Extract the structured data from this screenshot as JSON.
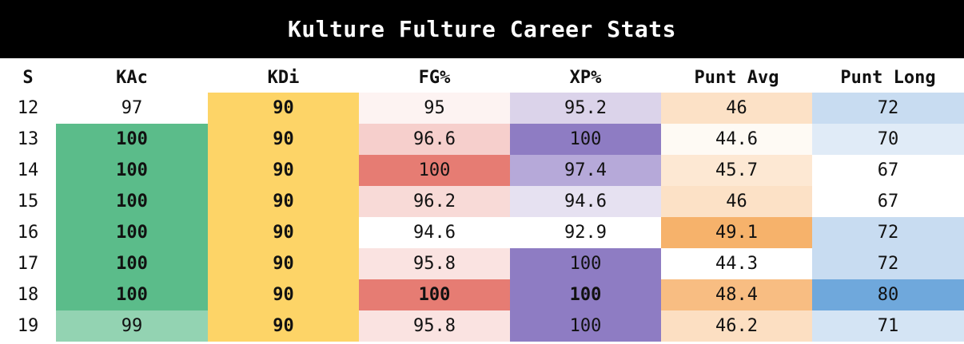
{
  "title": "Kulture Fulture Career Stats",
  "columns": [
    "S",
    "KAc",
    "KDi",
    "FG%",
    "XP%",
    "Punt Avg",
    "Punt Long"
  ],
  "rows": [
    {
      "cells": [
        {
          "v": "12",
          "bg": "#ffffff",
          "b": false
        },
        {
          "v": "97",
          "bg": "#ffffff",
          "b": false
        },
        {
          "v": "90",
          "bg": "#fdd467",
          "b": true
        },
        {
          "v": "95",
          "bg": "#fdf3f2",
          "b": false
        },
        {
          "v": "95.2",
          "bg": "#dbd3ea",
          "b": false
        },
        {
          "v": "46",
          "bg": "#fce1c6",
          "b": false
        },
        {
          "v": "72",
          "bg": "#c8dcf1",
          "b": false
        }
      ]
    },
    {
      "cells": [
        {
          "v": "13",
          "bg": "#ffffff",
          "b": false
        },
        {
          "v": "100",
          "bg": "#5bbc8a",
          "b": true
        },
        {
          "v": "90",
          "bg": "#fdd467",
          "b": true
        },
        {
          "v": "96.6",
          "bg": "#f6cfcc",
          "b": false
        },
        {
          "v": "100",
          "bg": "#8e7cc3",
          "b": false
        },
        {
          "v": "44.6",
          "bg": "#fefaf4",
          "b": false
        },
        {
          "v": "70",
          "bg": "#e0ebf7",
          "b": false
        }
      ]
    },
    {
      "cells": [
        {
          "v": "14",
          "bg": "#ffffff",
          "b": false
        },
        {
          "v": "100",
          "bg": "#5bbc8a",
          "b": true
        },
        {
          "v": "90",
          "bg": "#fdd467",
          "b": true
        },
        {
          "v": "100",
          "bg": "#e67c73",
          "b": false
        },
        {
          "v": "97.4",
          "bg": "#b6a9d9",
          "b": false
        },
        {
          "v": "45.7",
          "bg": "#fde8d3",
          "b": false
        },
        {
          "v": "67",
          "bg": "#ffffff",
          "b": false
        }
      ]
    },
    {
      "cells": [
        {
          "v": "15",
          "bg": "#ffffff",
          "b": false
        },
        {
          "v": "100",
          "bg": "#5bbc8a",
          "b": true
        },
        {
          "v": "90",
          "bg": "#fdd467",
          "b": true
        },
        {
          "v": "96.2",
          "bg": "#f8dad7",
          "b": false
        },
        {
          "v": "94.6",
          "bg": "#e6e1f1",
          "b": false
        },
        {
          "v": "46",
          "bg": "#fce1c6",
          "b": false
        },
        {
          "v": "67",
          "bg": "#ffffff",
          "b": false
        }
      ]
    },
    {
      "cells": [
        {
          "v": "16",
          "bg": "#ffffff",
          "b": false
        },
        {
          "v": "100",
          "bg": "#5bbc8a",
          "b": true
        },
        {
          "v": "90",
          "bg": "#fdd467",
          "b": true
        },
        {
          "v": "94.6",
          "bg": "#ffffff",
          "b": false
        },
        {
          "v": "92.9",
          "bg": "#ffffff",
          "b": false
        },
        {
          "v": "49.1",
          "bg": "#f6b26b",
          "b": false
        },
        {
          "v": "72",
          "bg": "#c8dcf1",
          "b": false
        }
      ]
    },
    {
      "cells": [
        {
          "v": "17",
          "bg": "#ffffff",
          "b": false
        },
        {
          "v": "100",
          "bg": "#5bbc8a",
          "b": true
        },
        {
          "v": "90",
          "bg": "#fdd467",
          "b": true
        },
        {
          "v": "95.8",
          "bg": "#fae3e1",
          "b": false
        },
        {
          "v": "100",
          "bg": "#8e7cc3",
          "b": false
        },
        {
          "v": "44.3",
          "bg": "#ffffff",
          "b": false
        },
        {
          "v": "72",
          "bg": "#c8dcf1",
          "b": false
        }
      ]
    },
    {
      "cells": [
        {
          "v": "18",
          "bg": "#ffffff",
          "b": false
        },
        {
          "v": "100",
          "bg": "#5bbc8a",
          "b": true
        },
        {
          "v": "90",
          "bg": "#fdd467",
          "b": true
        },
        {
          "v": "100",
          "bg": "#e67c73",
          "b": true
        },
        {
          "v": "100",
          "bg": "#8e7cc3",
          "b": true
        },
        {
          "v": "48.4",
          "bg": "#f8bd82",
          "b": false
        },
        {
          "v": "80",
          "bg": "#6fa8dc",
          "b": false
        }
      ]
    },
    {
      "cells": [
        {
          "v": "19",
          "bg": "#ffffff",
          "b": false
        },
        {
          "v": "99",
          "bg": "#93d3b2",
          "b": false
        },
        {
          "v": "90",
          "bg": "#fdd467",
          "b": true
        },
        {
          "v": "95.8",
          "bg": "#fae3e1",
          "b": false
        },
        {
          "v": "100",
          "bg": "#8e7cc3",
          "b": false
        },
        {
          "v": "46.2",
          "bg": "#fcdfc2",
          "b": false
        },
        {
          "v": "71",
          "bg": "#d4e4f4",
          "b": false
        }
      ]
    }
  ]
}
